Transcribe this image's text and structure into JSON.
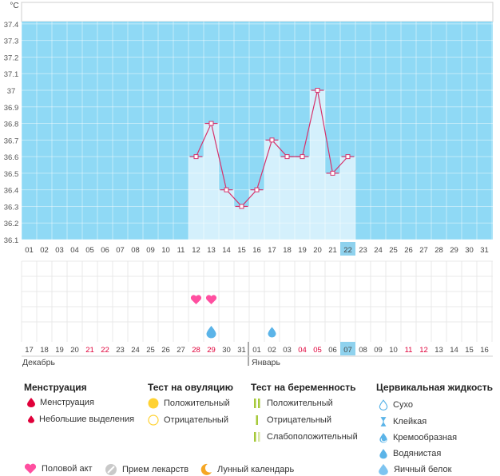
{
  "chart_data": {
    "type": "bar",
    "unit": "°C",
    "y_ticks": [
      "36.1",
      "36.2",
      "36.3",
      "36.4",
      "36.5",
      "36.6",
      "36.7",
      "36.8",
      "36.9",
      "37",
      "37.1",
      "37.2",
      "37.3",
      "37.4"
    ],
    "ylim": [
      36.1,
      37.5
    ],
    "cycle_days": [
      "01",
      "02",
      "03",
      "04",
      "05",
      "06",
      "07",
      "08",
      "09",
      "10",
      "11",
      "12",
      "13",
      "14",
      "15",
      "16",
      "17",
      "18",
      "19",
      "20",
      "21",
      "22",
      "23",
      "24",
      "25",
      "26",
      "27",
      "28",
      "29",
      "30",
      "31"
    ],
    "highlight_cycle_day": "22",
    "temperatures": [
      null,
      null,
      null,
      null,
      null,
      null,
      null,
      null,
      null,
      null,
      null,
      36.6,
      36.8,
      36.4,
      36.3,
      36.4,
      36.7,
      36.6,
      36.6,
      37.0,
      36.5,
      36.6,
      null,
      null,
      null,
      null,
      null,
      null,
      null,
      null,
      null
    ],
    "dates": [
      "17",
      "18",
      "19",
      "20",
      "21",
      "22",
      "23",
      "24",
      "25",
      "26",
      "27",
      "28",
      "29",
      "30",
      "31",
      "01",
      "02",
      "03",
      "04",
      "05",
      "06",
      "07",
      "08",
      "09",
      "10",
      "11",
      "12",
      "13",
      "14",
      "15",
      "16"
    ],
    "red_dates_index": [
      4,
      5,
      11,
      12,
      18,
      19,
      25,
      26
    ],
    "highlight_date_index": 21,
    "months": [
      {
        "name": "Декабрь",
        "start_index": 0
      },
      {
        "name": "Январь",
        "start_index": 15
      }
    ],
    "intercourse_days_index": [
      11,
      12
    ],
    "fluid_days_index": [
      12,
      16
    ]
  },
  "colors": {
    "sky": "#8fd9f5",
    "bar": "#d4f0fc",
    "line": "#d6336c",
    "grid": "#e9e9e9",
    "heart": "#ff4fa0",
    "drop": "#5bb4e8",
    "red": "#e0003a",
    "highlight": "#8fd2ee"
  },
  "legend": {
    "menstruation": {
      "title": "Менструация",
      "items": [
        "Менструация",
        "Небольшие выделения"
      ]
    },
    "ovulation": {
      "title": "Тест на овуляцию",
      "items": [
        "Положительный",
        "Отрицательный"
      ]
    },
    "pregnancy": {
      "title": "Тест на беременность",
      "items": [
        "Положительный",
        "Отрицательный",
        "Слабоположительный"
      ]
    },
    "cervical": {
      "title": "Цервикальная жидкость",
      "items": [
        "Сухо",
        "Клейкая",
        "Кремообразная",
        "Водянистая",
        "Яичный белок"
      ]
    },
    "bottom": [
      {
        "label": "Половой акт",
        "icon": "heart-icon"
      },
      {
        "label": "Прием лекарств",
        "icon": "pill-icon"
      },
      {
        "label": "Лунный календарь",
        "icon": "moon-icon"
      }
    ]
  }
}
